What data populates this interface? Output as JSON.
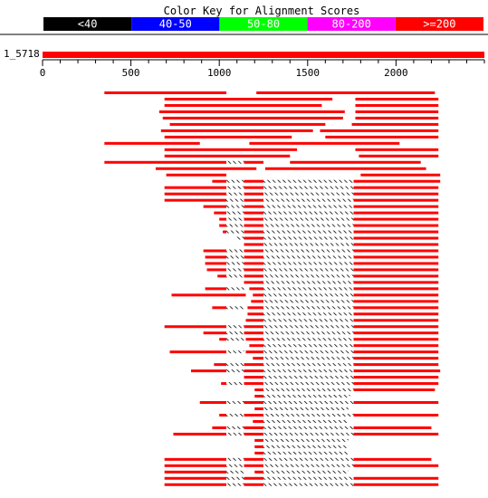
{
  "title": "Color Key for Alignment Scores",
  "color_key": [
    {
      "label": "<40",
      "color": "#000000",
      "text_color": "#ffffff"
    },
    {
      "label": "40-50",
      "color": "#0000ff",
      "text_color": "#ffffff"
    },
    {
      "label": "50-80",
      "color": "#00ff00",
      "text_color": "#ffffff"
    },
    {
      "label": "80-200",
      "color": "#ff00ff",
      "text_color": "#ffffff"
    },
    {
      "label": ">=200",
      "color": "#ff0000",
      "text_color": "#ffffff"
    }
  ],
  "query": {
    "label": "1_5718",
    "length": 2500,
    "ticks": [
      0,
      500,
      1000,
      1500,
      2000
    ],
    "minor_tick_step": 100,
    "color": "#ff0000"
  },
  "hits": [
    [
      [
        350,
        1040
      ],
      [
        1210,
        2220
      ]
    ],
    [
      [
        690,
        1640
      ],
      [
        1770,
        2240
      ]
    ],
    [
      [
        690,
        1580
      ],
      [
        1770,
        2240
      ]
    ],
    [
      [
        660,
        1710
      ],
      [
        1770,
        2240
      ]
    ],
    [
      [
        680,
        1700
      ],
      [
        1770,
        2240
      ]
    ],
    [
      [
        720,
        1600
      ],
      [
        1750,
        2240
      ]
    ],
    [
      [
        670,
        1530
      ],
      [
        1570,
        2240
      ]
    ],
    [
      [
        690,
        1410
      ],
      [
        1600,
        2240
      ]
    ],
    [
      [
        350,
        890
      ],
      [
        1170,
        2020
      ]
    ],
    [
      [
        690,
        1440
      ],
      [
        1770,
        2240
      ]
    ],
    [
      [
        690,
        1400
      ],
      [
        1790,
        2240
      ]
    ],
    [
      [
        350,
        1040,
        "h",
        1040,
        1140
      ],
      [
        1140,
        1250
      ],
      [
        1400,
        2140
      ]
    ],
    [
      [
        640,
        1210
      ],
      [
        1260,
        2170
      ]
    ],
    [
      [
        700,
        1040
      ],
      [
        1800,
        2250
      ]
    ],
    [
      [
        960,
        1040,
        "h",
        1040,
        1140
      ],
      [
        1140,
        1250,
        "h",
        1250,
        1760
      ],
      [
        1760,
        2250
      ]
    ],
    [
      [
        690,
        1040,
        "h",
        1040,
        1140
      ],
      [
        1140,
        1250,
        "h",
        1250,
        1760
      ],
      [
        1760,
        2240
      ]
    ],
    [
      [
        690,
        1040,
        "h",
        1040,
        1140
      ],
      [
        1140,
        1250,
        "h",
        1250,
        1760
      ],
      [
        1760,
        2240
      ]
    ],
    [
      [
        690,
        1040,
        "h",
        1040,
        1140
      ],
      [
        1140,
        1250,
        "h",
        1250,
        1760
      ],
      [
        1760,
        2240
      ]
    ],
    [
      [
        910,
        1040,
        "h",
        1040,
        1140
      ],
      [
        1140,
        1250,
        "h",
        1250,
        1760
      ],
      [
        1760,
        2240
      ]
    ],
    [
      [
        970,
        1040,
        "h",
        1040,
        1140
      ],
      [
        1140,
        1250,
        "h",
        1250,
        1760
      ],
      [
        1760,
        2240
      ]
    ],
    [
      [
        1000,
        1040,
        "h",
        1040,
        1140
      ],
      [
        1140,
        1250,
        "h",
        1250,
        1760
      ],
      [
        1760,
        2240
      ]
    ],
    [
      [
        1000,
        1040,
        "h",
        1040,
        1140
      ],
      [
        1140,
        1250,
        "h",
        1250,
        1760
      ],
      [
        1760,
        2240
      ]
    ],
    [
      [
        1020,
        1040,
        "h",
        1040,
        1140
      ],
      [
        1140,
        1250,
        "h",
        1250,
        1760
      ],
      [
        1760,
        2240
      ]
    ],
    [
      [
        "h",
        1090,
        1140
      ],
      [
        1140,
        1250,
        "h",
        1250,
        1760
      ],
      [
        1760,
        2240
      ]
    ],
    [
      [
        1140,
        1250,
        "h",
        1250,
        1760
      ],
      [
        1760,
        2240
      ]
    ],
    [
      [
        910,
        1040,
        "h",
        1040,
        1140
      ],
      [
        1140,
        1250,
        "h",
        1250,
        1760
      ],
      [
        1760,
        2240
      ]
    ],
    [
      [
        920,
        1040,
        "h",
        1040,
        1140
      ],
      [
        1140,
        1250,
        "h",
        1250,
        1760
      ],
      [
        1760,
        2240
      ]
    ],
    [
      [
        920,
        1040,
        "h",
        1040,
        1140
      ],
      [
        1140,
        1250,
        "h",
        1250,
        1760
      ],
      [
        1760,
        2240
      ]
    ],
    [
      [
        930,
        1040,
        "h",
        1040,
        1140
      ],
      [
        1140,
        1250,
        "h",
        1250,
        1760
      ],
      [
        1760,
        2240
      ]
    ],
    [
      [
        990,
        1040,
        "h",
        1040,
        1140
      ],
      [
        1140,
        1250,
        "h",
        1250,
        1760
      ],
      [
        1760,
        2240
      ]
    ],
    [
      [
        1140,
        1250,
        "h",
        1250,
        1760
      ],
      [
        1760,
        2240
      ]
    ],
    [
      [
        920,
        1040,
        "h",
        1040,
        1140
      ],
      [
        1170,
        1250,
        "h",
        1250,
        1760
      ],
      [
        1760,
        2240
      ]
    ],
    [
      [
        730,
        1150
      ],
      [
        1190,
        1250,
        "h",
        1250,
        1760
      ],
      [
        1760,
        2240
      ]
    ],
    [
      [
        1180,
        1250,
        "h",
        1250,
        1760
      ],
      [
        1760,
        2240
      ]
    ],
    [
      [
        960,
        1040,
        "h",
        1040,
        1140
      ],
      [
        1160,
        1250,
        "h",
        1250,
        1760
      ],
      [
        1760,
        2240
      ]
    ],
    [
      [
        1160,
        1250,
        "h",
        1250,
        1760
      ],
      [
        1760,
        2240
      ]
    ],
    [
      [
        1150,
        1250,
        "h",
        1250,
        1760
      ],
      [
        1760,
        2240
      ]
    ],
    [
      [
        690,
        1040,
        "h",
        1040,
        1140
      ],
      [
        1140,
        1250,
        "h",
        1250,
        1760
      ],
      [
        1760,
        2240
      ]
    ],
    [
      [
        910,
        1040,
        "h",
        1040,
        1140
      ],
      [
        1140,
        1250,
        "h",
        1250,
        1760
      ],
      [
        1760,
        2240
      ]
    ],
    [
      [
        1000,
        1040,
        "h",
        1040,
        1140
      ],
      [
        1150,
        1250,
        "h",
        1250,
        1760
      ],
      [
        1760,
        2240
      ]
    ],
    [
      [
        1170,
        1250,
        "h",
        1250,
        1760
      ],
      [
        1760,
        2240
      ]
    ],
    [
      [
        720,
        1040,
        "h",
        1040,
        1140
      ],
      [
        1150,
        1250,
        "h",
        1250,
        1760
      ],
      [
        1760,
        2240
      ]
    ],
    [
      [
        1190,
        1250,
        "h",
        1250,
        1760
      ],
      [
        1760,
        2240
      ]
    ],
    [
      [
        970,
        1040,
        "h",
        1040,
        1140
      ],
      [
        1140,
        1250,
        "h",
        1250,
        1760
      ],
      [
        1760,
        2240
      ]
    ],
    [
      [
        840,
        1040,
        "h",
        1040,
        1140
      ],
      [
        1140,
        1250,
        "h",
        1250,
        1760
      ],
      [
        1760,
        2250
      ]
    ],
    [
      [
        1140,
        1250,
        "h",
        1250,
        1760
      ],
      [
        1760,
        2240
      ]
    ],
    [
      [
        1010,
        1040,
        "h",
        1040,
        1140
      ],
      [
        1140,
        1250,
        "h",
        1250,
        1760
      ],
      [
        1760,
        2240
      ]
    ],
    [
      [
        1200,
        1250,
        "h",
        1250,
        1760
      ],
      [
        1760,
        2220
      ]
    ],
    [
      [
        1200,
        1250,
        "h",
        1250,
        1740
      ]
    ],
    [
      [
        890,
        1040,
        "h",
        1040,
        1140
      ],
      [
        1140,
        1250,
        "h",
        1250,
        1760
      ],
      [
        1760,
        2240
      ]
    ],
    [
      [
        1200,
        1250,
        "h",
        1250,
        1730
      ]
    ],
    [
      [
        1000,
        1040,
        "h",
        1040,
        1140
      ],
      [
        1140,
        1250,
        "h",
        1250,
        1760
      ],
      [
        1760,
        2240
      ]
    ],
    [
      [
        1190,
        1250,
        "h",
        1250,
        1730
      ]
    ],
    [
      [
        960,
        1040,
        "h",
        1040,
        1140
      ],
      [
        1140,
        1250,
        "h",
        1250,
        1760
      ],
      [
        1760,
        2200
      ]
    ],
    [
      [
        740,
        1040,
        "h",
        1040,
        1140
      ],
      [
        1140,
        1250,
        "h",
        1250,
        1760
      ],
      [
        1760,
        2240
      ]
    ],
    [
      [
        1200,
        1250,
        "h",
        1250,
        1730
      ]
    ],
    [
      [
        1200,
        1250,
        "h",
        1250,
        1730
      ]
    ],
    [
      [
        1200,
        1250,
        "h",
        1250,
        1730
      ]
    ],
    [
      [
        690,
        1040,
        "h",
        1040,
        1140
      ],
      [
        1140,
        1250,
        "h",
        1250,
        1760
      ],
      [
        1760,
        2200
      ]
    ],
    [
      [
        690,
        1040,
        "h",
        1040,
        1140
      ],
      [
        1140,
        1250,
        "h",
        1250,
        1760
      ],
      [
        1760,
        2240
      ]
    ],
    [
      [
        690,
        1040,
        "h",
        1040,
        1140
      ],
      [
        1200,
        1250,
        "h",
        1250,
        1730
      ]
    ],
    [
      [
        690,
        1040,
        "h",
        1040,
        1140
      ],
      [
        1140,
        1250,
        "h",
        1250,
        1760
      ],
      [
        1760,
        2240
      ]
    ],
    [
      [
        690,
        1040,
        "h",
        1040,
        1140
      ],
      [
        1140,
        1250,
        "h",
        1250,
        1760
      ],
      [
        1760,
        2240
      ]
    ]
  ]
}
